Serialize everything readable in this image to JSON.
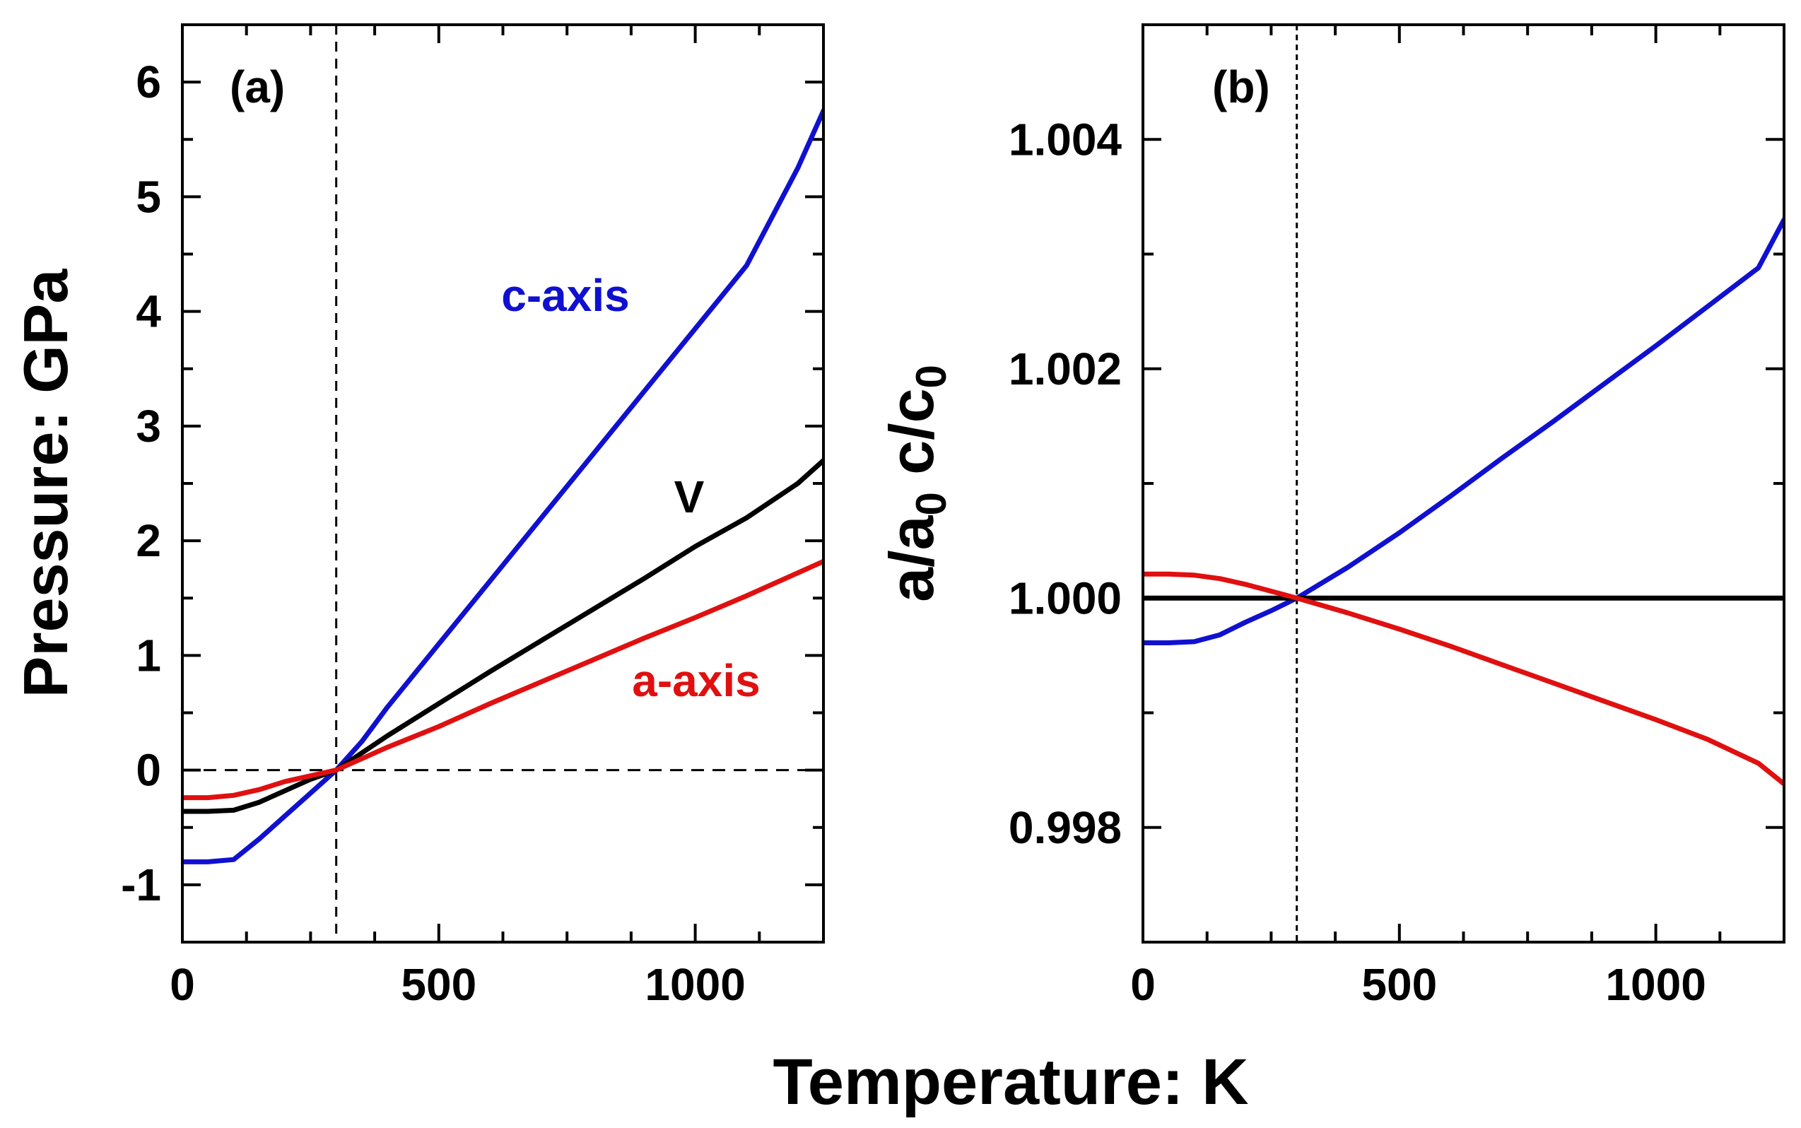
{
  "figure": {
    "shared_xlabel": "Temperature: K"
  },
  "chart_data": [
    {
      "panel_label": "(a)",
      "type": "line",
      "xlabel": "",
      "ylabel": "Pressure: GPa",
      "xlim": [
        0,
        1250
      ],
      "ylim": [
        -1.5,
        6.5
      ],
      "x_ticks": [
        0,
        500,
        1000
      ],
      "x_tick_labels": [
        "0",
        "500",
        "1000"
      ],
      "y_ticks": [
        -1,
        0,
        1,
        2,
        3,
        4,
        5,
        6
      ],
      "y_tick_labels": [
        "-1",
        "0",
        "1",
        "2",
        "3",
        "4",
        "5",
        "6"
      ],
      "reference_lines": [
        {
          "orientation": "vertical",
          "value": 300,
          "style": "dashed"
        },
        {
          "orientation": "horizontal",
          "value": 0,
          "style": "dashed"
        }
      ],
      "series": [
        {
          "name": "c-axis",
          "label": "c-axis",
          "color": "#1010d0",
          "x": [
            0,
            50,
            100,
            150,
            200,
            250,
            300,
            350,
            400,
            500,
            600,
            700,
            800,
            900,
            1000,
            1100,
            1200,
            1250
          ],
          "y": [
            -0.8,
            -0.8,
            -0.78,
            -0.6,
            -0.4,
            -0.2,
            0.0,
            0.25,
            0.55,
            1.1,
            1.65,
            2.2,
            2.75,
            3.3,
            3.85,
            4.4,
            5.25,
            5.75
          ]
        },
        {
          "name": "V",
          "label": "V",
          "color": "#000000",
          "x": [
            0,
            50,
            100,
            150,
            200,
            250,
            300,
            400,
            500,
            600,
            700,
            800,
            900,
            1000,
            1100,
            1200,
            1250
          ],
          "y": [
            -0.36,
            -0.36,
            -0.35,
            -0.28,
            -0.18,
            -0.08,
            0.0,
            0.3,
            0.58,
            0.86,
            1.13,
            1.4,
            1.67,
            1.95,
            2.2,
            2.5,
            2.7
          ]
        },
        {
          "name": "a-axis",
          "label": "a-axis",
          "color": "#e01010",
          "x": [
            0,
            50,
            100,
            150,
            200,
            250,
            300,
            400,
            500,
            600,
            700,
            800,
            900,
            1000,
            1100,
            1200,
            1250
          ],
          "y": [
            -0.24,
            -0.24,
            -0.22,
            -0.17,
            -0.1,
            -0.05,
            0.0,
            0.2,
            0.38,
            0.58,
            0.77,
            0.96,
            1.15,
            1.33,
            1.52,
            1.72,
            1.82
          ]
        }
      ]
    },
    {
      "panel_label": "(b)",
      "type": "line",
      "xlabel": "",
      "ylabel": "a/a0 c/c0",
      "ylabel_parts": {
        "a": "a/a",
        "a_sub": "0",
        "c": " c/c",
        "c_sub": "0"
      },
      "xlim": [
        0,
        1250
      ],
      "ylim": [
        0.997,
        1.005
      ],
      "x_ticks": [
        0,
        500,
        1000
      ],
      "x_tick_labels": [
        "0",
        "500",
        "1000"
      ],
      "y_ticks": [
        0.998,
        1.0,
        1.002,
        1.004
      ],
      "y_tick_labels": [
        "0.998",
        "1.000",
        "1.002",
        "1.004"
      ],
      "reference_lines": [
        {
          "orientation": "vertical",
          "value": 300,
          "style": "dashed"
        }
      ],
      "series": [
        {
          "name": "c-axis",
          "color": "#1010d0",
          "x": [
            0,
            50,
            100,
            150,
            200,
            250,
            300,
            400,
            500,
            600,
            700,
            800,
            900,
            1000,
            1100,
            1200,
            1250
          ],
          "y": [
            0.99961,
            0.99961,
            0.99962,
            0.99968,
            0.99979,
            0.99989,
            1.0,
            1.00027,
            1.00057,
            1.00089,
            1.00122,
            1.00154,
            1.00187,
            1.0022,
            1.00254,
            1.00288,
            1.0033
          ]
        },
        {
          "name": "V",
          "color": "#000000",
          "x": [
            0,
            1250
          ],
          "y": [
            1.0,
            1.0
          ]
        },
        {
          "name": "a-axis",
          "color": "#e01010",
          "x": [
            0,
            50,
            100,
            150,
            200,
            250,
            300,
            400,
            500,
            600,
            700,
            800,
            900,
            1000,
            1100,
            1200,
            1250
          ],
          "y": [
            1.00021,
            1.00021,
            1.0002,
            1.00017,
            1.00012,
            1.00006,
            1.0,
            0.99987,
            0.99973,
            0.99958,
            0.99942,
            0.99926,
            0.9991,
            0.99894,
            0.99877,
            0.99856,
            0.99838
          ]
        }
      ]
    }
  ]
}
